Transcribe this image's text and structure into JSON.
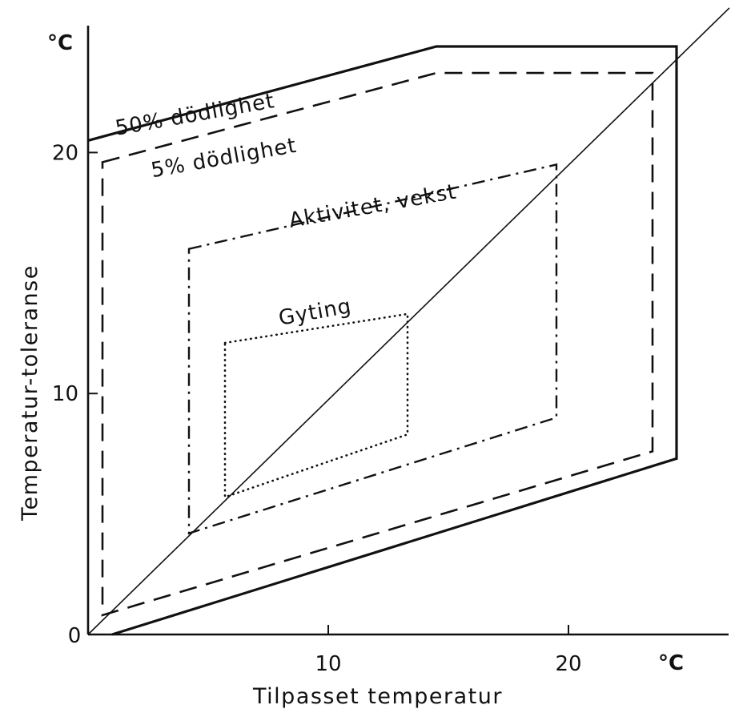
{
  "chart_data": {
    "type": "line",
    "title": "",
    "xlabel": "Tilpasset temperatur",
    "ylabel": "Temperatur-toleranse",
    "x_unit": "°C",
    "y_unit": "°C",
    "origin_label": "0",
    "xlim": [
      0,
      27
    ],
    "ylim": [
      0,
      25
    ],
    "x_ticks": [
      {
        "value": 10,
        "label": "10"
      },
      {
        "value": 20,
        "label": "20"
      }
    ],
    "y_ticks": [
      {
        "value": 10,
        "label": "10"
      },
      {
        "value": 20,
        "label": "20"
      }
    ],
    "grid": false,
    "series": [
      {
        "name": "50% dödlighet",
        "style": "solid",
        "closed": false,
        "label_anchor": [
          4.5,
          21.3
        ],
        "label_angle": -10,
        "points": [
          [
            0,
            20.5
          ],
          [
            14.5,
            24.4
          ],
          [
            24.5,
            24.4
          ],
          [
            24.5,
            7.3
          ],
          [
            1.0,
            0
          ]
        ]
      },
      {
        "name": "5% dödlighet",
        "style": "dashed",
        "closed": true,
        "label_anchor": [
          5.7,
          19.5
        ],
        "label_angle": -10,
        "points": [
          [
            0.6,
            19.6
          ],
          [
            14.5,
            23.3
          ],
          [
            23.5,
            23.3
          ],
          [
            23.5,
            7.6
          ],
          [
            0.6,
            0.8
          ]
        ]
      },
      {
        "name": "Aktivitet, vekst",
        "style": "dashdot",
        "closed": true,
        "label_anchor": [
          11.9,
          17.5
        ],
        "label_angle": -10,
        "points": [
          [
            4.2,
            16.0
          ],
          [
            19.5,
            19.5
          ],
          [
            19.5,
            9.0
          ],
          [
            4.2,
            4.2
          ]
        ]
      },
      {
        "name": "Gyting",
        "style": "dotted",
        "closed": true,
        "label_anchor": [
          9.5,
          13.1
        ],
        "label_angle": -10,
        "points": [
          [
            5.7,
            12.1
          ],
          [
            13.3,
            13.3
          ],
          [
            13.3,
            8.3
          ],
          [
            5.7,
            5.7
          ]
        ]
      }
    ],
    "reference_line": {
      "style": "solid-thin",
      "points": [
        [
          0,
          0
        ],
        [
          26.7,
          26.0
        ]
      ]
    }
  }
}
